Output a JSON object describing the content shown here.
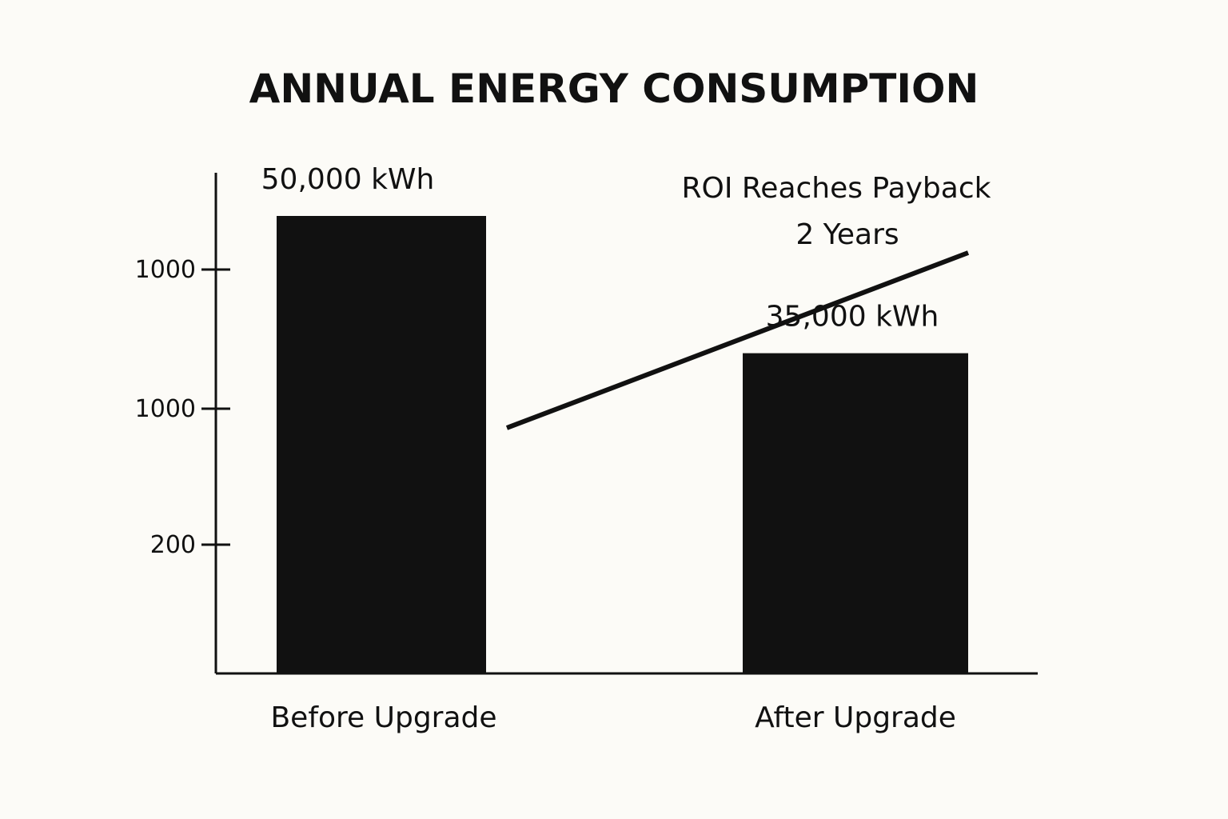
{
  "chart_data": {
    "type": "bar",
    "title": "ANNUAL ENERGY CONSUMPTION",
    "xlabel": "",
    "ylabel": "",
    "categories": [
      "Before Upgrade",
      "After Upgrade"
    ],
    "values": [
      50000,
      35000
    ],
    "data_labels": [
      "50,000 kWh",
      "35,000 kWh"
    ],
    "y_tick_labels": [
      "1000",
      "1000",
      "200"
    ],
    "grid": false,
    "bar_color": "#111111",
    "annotation": {
      "line1": "ROI Reaches Payback",
      "line2": "2 Years",
      "type": "rising-trend-line"
    }
  }
}
